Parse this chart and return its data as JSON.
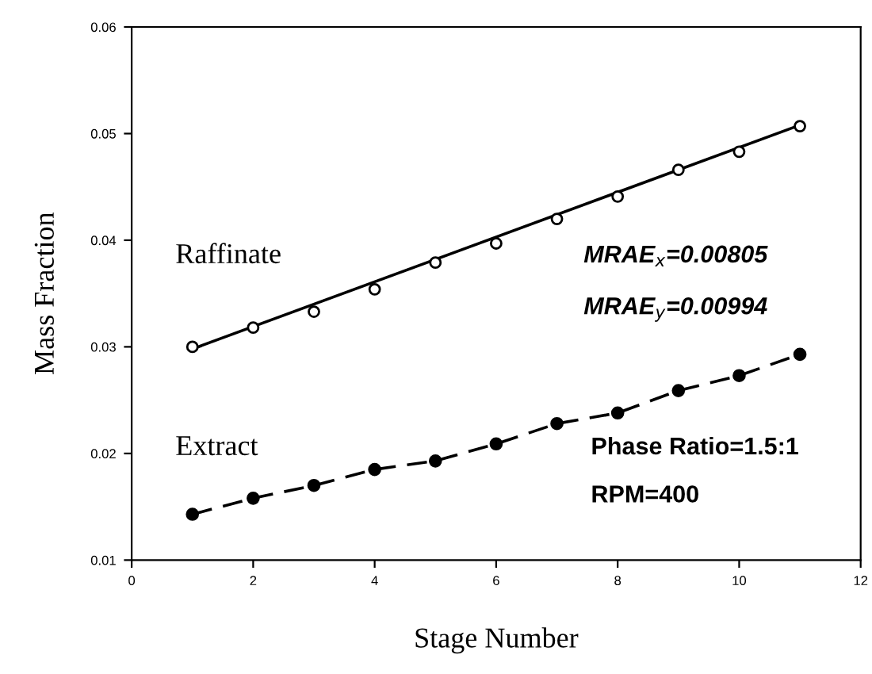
{
  "chart_data": {
    "type": "scatter",
    "xlabel": "Stage Number",
    "ylabel": "Mass Fraction",
    "xlim": [
      0,
      12
    ],
    "xticks": [
      0,
      2,
      4,
      6,
      8,
      10,
      12
    ],
    "ylim": [
      0.01,
      0.06
    ],
    "yticks": [
      0.01,
      0.02,
      0.03,
      0.04,
      0.05,
      0.06
    ],
    "grid": false,
    "series": [
      {
        "color": "#000000",
        "marker": "circle",
        "x": [
          1,
          2,
          3,
          4,
          5,
          6,
          7,
          8,
          9,
          10,
          11
        ],
        "values": [
          0.03,
          0.0318,
          0.0333,
          0.0354,
          0.0379,
          0.0397,
          0.042,
          0.0441,
          0.0466,
          0.0483,
          0.0507
        ]
      },
      {
        "type": "line",
        "color": "#000000",
        "line_style": "solid",
        "marker": "none",
        "x": [
          1,
          11
        ],
        "values": [
          0.0298,
          0.0508
        ]
      },
      {
        "type": "line",
        "color": "#000000",
        "line_style": "dashed",
        "marker": "circle",
        "x": [
          1,
          2,
          3,
          4,
          5,
          6,
          7,
          8,
          9,
          10,
          11
        ],
        "values": [
          0.0143,
          0.0158,
          0.017,
          0.0185,
          0.0193,
          0.0209,
          0.0228,
          0.0238,
          0.0259,
          0.0273,
          0.0293
        ]
      }
    ],
    "annotations": [
      "Raffinate",
      "Extract",
      "MRAE$_{x}$=0.00805",
      "MRAE$_{y}$=0.00994",
      "Phase Ratio=1.5:1",
      "RPM=400"
    ]
  }
}
